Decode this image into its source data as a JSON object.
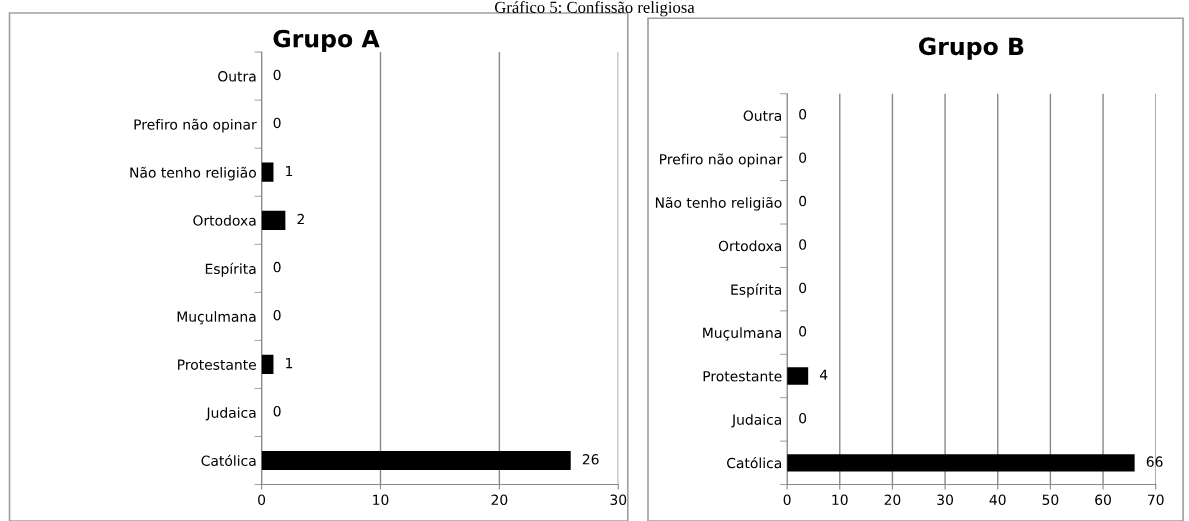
{
  "chart_data": [
    {
      "type": "bar",
      "orientation": "horizontal",
      "title": "Grupo A",
      "annotations": [
        "Gráfico 5: Confissão religiosa"
      ],
      "categories": [
        "Outra",
        "Prefiro não opinar",
        "Não tenho religião",
        "Ortodoxa",
        "Espírita",
        "Muçulmana",
        "Protestante",
        "Judaica",
        "Católica"
      ],
      "values": [
        0,
        0,
        1,
        2,
        0,
        0,
        1,
        0,
        26
      ],
      "color": "#000000",
      "xlim": [
        0,
        30
      ],
      "xticks": [
        0,
        10,
        20,
        30
      ],
      "grid": "x",
      "data_labels": true
    },
    {
      "type": "bar",
      "orientation": "horizontal",
      "title": "Grupo B",
      "categories": [
        "Outra",
        "Prefiro não opinar",
        "Não tenho religião",
        "Ortodoxa",
        "Espírita",
        "Muçulmana",
        "Protestante",
        "Judaica",
        "Católica"
      ],
      "values": [
        0,
        0,
        0,
        0,
        0,
        0,
        4,
        0,
        66
      ],
      "color": "#000000",
      "xlim": [
        0,
        70
      ],
      "xticks": [
        0,
        10,
        20,
        30,
        40,
        50,
        60,
        70
      ],
      "grid": "x",
      "data_labels": true
    }
  ]
}
